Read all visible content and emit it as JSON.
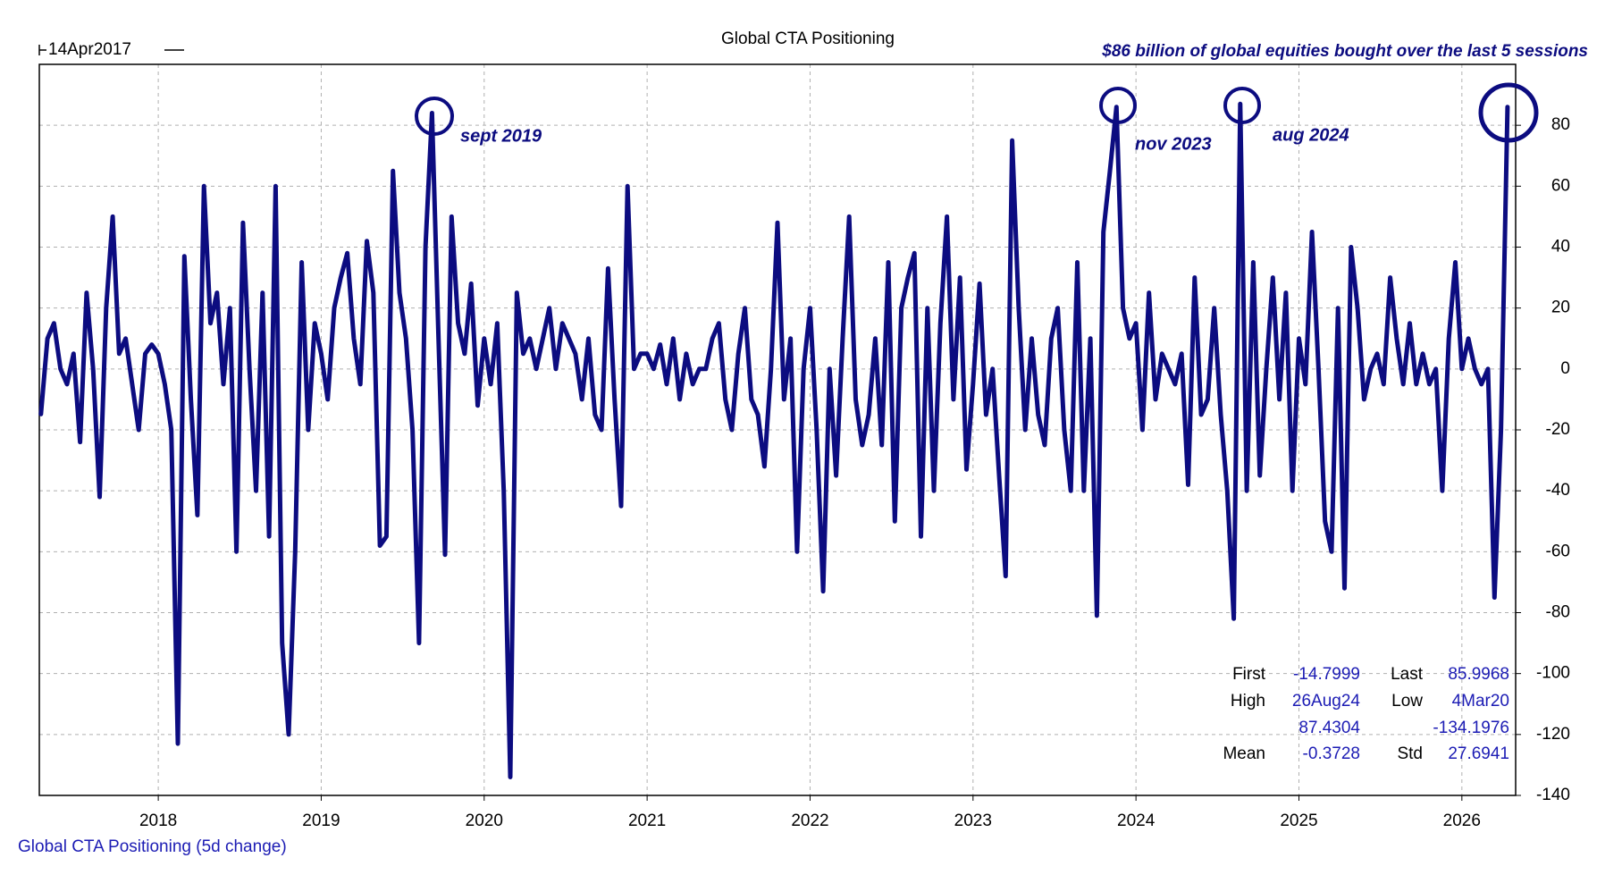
{
  "chart_data": {
    "type": "line",
    "title": "Global CTA Positioning",
    "start_label": "14Apr2017",
    "headline": "$86 billion of global equities bought over the last 5 sessions",
    "annotations": [
      "sept 2019",
      "nov 2023",
      "aug 2024"
    ],
    "series_name": "Global CTA Positioning (5d change)",
    "color": "#0c0c80",
    "grid": true,
    "xlim": [
      2017.27,
      2026.33
    ],
    "xticks": [
      2018,
      2019,
      2020,
      2021,
      2022,
      2023,
      2024,
      2025,
      2026
    ],
    "ylim": [
      -140,
      100
    ],
    "yticks": [
      -140,
      -120,
      -100,
      -80,
      -60,
      -40,
      -20,
      0,
      20,
      40,
      60,
      80
    ],
    "x": [
      2017.28,
      2017.32,
      2017.36,
      2017.4,
      2017.44,
      2017.48,
      2017.52,
      2017.56,
      2017.6,
      2017.64,
      2017.68,
      2017.72,
      2017.76,
      2017.8,
      2017.84,
      2017.88,
      2017.92,
      2017.96,
      2018,
      2018.04,
      2018.08,
      2018.12,
      2018.16,
      2018.2,
      2018.24,
      2018.28,
      2018.32,
      2018.36,
      2018.4,
      2018.44,
      2018.48,
      2018.52,
      2018.56,
      2018.6,
      2018.64,
      2018.68,
      2018.72,
      2018.76,
      2018.8,
      2018.84,
      2018.88,
      2018.92,
      2018.96,
      2019,
      2019.04,
      2019.08,
      2019.12,
      2019.16,
      2019.2,
      2019.24,
      2019.28,
      2019.32,
      2019.36,
      2019.4,
      2019.44,
      2019.48,
      2019.52,
      2019.56,
      2019.6,
      2019.64,
      2019.68,
      2019.72,
      2019.76,
      2019.8,
      2019.84,
      2019.88,
      2019.92,
      2019.96,
      2020,
      2020.04,
      2020.08,
      2020.12,
      2020.16,
      2020.2,
      2020.24,
      2020.28,
      2020.32,
      2020.36,
      2020.4,
      2020.44,
      2020.48,
      2020.52,
      2020.56,
      2020.6,
      2020.64,
      2020.68,
      2020.72,
      2020.76,
      2020.8,
      2020.84,
      2020.88,
      2020.92,
      2020.96,
      2021,
      2021.04,
      2021.08,
      2021.12,
      2021.16,
      2021.2,
      2021.24,
      2021.28,
      2021.32,
      2021.36,
      2021.4,
      2021.44,
      2021.48,
      2021.52,
      2021.56,
      2021.6,
      2021.64,
      2021.68,
      2021.72,
      2021.76,
      2021.8,
      2021.84,
      2021.88,
      2021.92,
      2021.96,
      2022,
      2022.04,
      2022.08,
      2022.12,
      2022.16,
      2022.2,
      2022.24,
      2022.28,
      2022.32,
      2022.36,
      2022.4,
      2022.44,
      2022.48,
      2022.52,
      2022.56,
      2022.6,
      2022.64,
      2022.68,
      2022.72,
      2022.76,
      2022.8,
      2022.84,
      2022.88,
      2022.92,
      2022.96,
      2023,
      2023.04,
      2023.08,
      2023.12,
      2023.16,
      2023.2,
      2023.24,
      2023.28,
      2023.32,
      2023.36,
      2023.4,
      2023.44,
      2023.48,
      2023.52,
      2023.56,
      2023.6,
      2023.64,
      2023.68,
      2023.72,
      2023.76,
      2023.8,
      2023.84,
      2023.88,
      2023.92,
      2023.96,
      2024,
      2024.04,
      2024.08,
      2024.12,
      2024.16,
      2024.2,
      2024.24,
      2024.28,
      2024.32,
      2024.36,
      2024.4,
      2024.44,
      2024.48,
      2024.52,
      2024.56,
      2024.6,
      2024.64,
      2024.68,
      2024.72,
      2024.76,
      2024.8,
      2024.84,
      2024.88,
      2024.92,
      2024.96,
      2025,
      2025.04,
      2025.08,
      2025.12,
      2025.16,
      2025.2,
      2025.24,
      2025.28,
      2025.32,
      2025.36,
      2025.4,
      2025.44,
      2025.48,
      2025.52,
      2025.56,
      2025.6,
      2025.64,
      2025.68,
      2025.72,
      2025.76,
      2025.8,
      2025.84,
      2025.88,
      2025.92,
      2025.96,
      2026,
      2026.04,
      2026.08,
      2026.12,
      2026.16,
      2026.2,
      2026.24,
      2026.28
    ],
    "values": [
      -14.8,
      10,
      15,
      0,
      -5,
      5,
      -24,
      25,
      0,
      -42,
      20,
      50,
      5,
      10,
      -5,
      -20,
      5,
      8,
      5,
      -5,
      -20,
      -123,
      37,
      -10,
      -48,
      60,
      15,
      25,
      -5,
      20,
      -60,
      48,
      0,
      -40,
      25,
      -55,
      60,
      -90,
      -120,
      -60,
      35,
      -20,
      15,
      5,
      -10,
      20,
      30,
      38,
      10,
      -5,
      42,
      25,
      -58,
      -55,
      65,
      25,
      10,
      -20,
      -90,
      40,
      84,
      10,
      -61,
      50,
      15,
      5,
      28,
      -12,
      10,
      -5,
      15,
      -40,
      -134,
      25,
      5,
      10,
      0,
      10,
      20,
      0,
      15,
      10,
      5,
      -10,
      10,
      -15,
      -20,
      33,
      -10,
      -45,
      60,
      0,
      5,
      5,
      0,
      8,
      -5,
      10,
      -10,
      5,
      -5,
      0,
      0,
      10,
      15,
      -10,
      -20,
      5,
      20,
      -10,
      -15,
      -32,
      0,
      48,
      -10,
      10,
      -60,
      0,
      20,
      -20,
      -73,
      0,
      -35,
      10,
      50,
      -10,
      -25,
      -15,
      10,
      -25,
      35,
      -50,
      20,
      30,
      38,
      -55,
      20,
      -40,
      15,
      50,
      -10,
      30,
      -33,
      -5,
      28,
      -15,
      0,
      -35,
      -68,
      75,
      20,
      -20,
      10,
      -15,
      -25,
      10,
      20,
      -20,
      -40,
      35,
      -40,
      10,
      -81,
      45,
      65,
      86,
      20,
      10,
      15,
      -20,
      25,
      -10,
      5,
      0,
      -5,
      5,
      -38,
      30,
      -15,
      -10,
      20,
      -15,
      -40,
      -82,
      87,
      -40,
      35,
      -35,
      0,
      30,
      -10,
      25,
      -40,
      10,
      -5,
      45,
      0,
      -50,
      -60,
      20,
      -72,
      40,
      20,
      -10,
      0,
      5,
      -5,
      30,
      10,
      -5,
      15,
      -5,
      5,
      -5,
      0,
      -40,
      10,
      35,
      0,
      10,
      0,
      -5,
      0,
      -75,
      -20,
      86
    ],
    "stats": {
      "first": {
        "label": "First",
        "value": -14.7999
      },
      "last": {
        "label": "Last",
        "value": 85.9968
      },
      "high": {
        "label": "High",
        "date": "26Aug24",
        "value": 87.4304
      },
      "low": {
        "label": "Low",
        "date": "4Mar20",
        "value": -134.1976
      },
      "mean": {
        "label": "Mean",
        "value": -0.3728
      },
      "std": {
        "label": "Std",
        "value": 27.6941
      }
    }
  }
}
